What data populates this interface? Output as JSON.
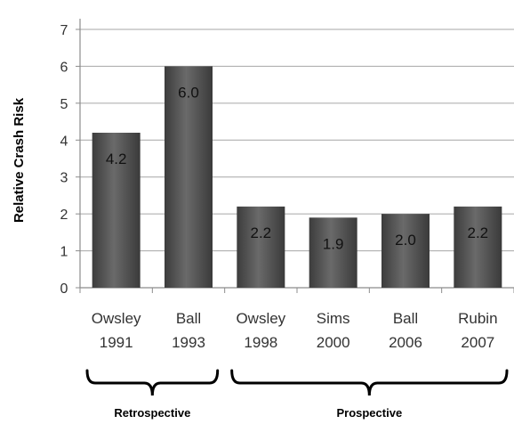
{
  "chart_data": {
    "type": "bar",
    "categories": [
      [
        "Owsley",
        "1991"
      ],
      [
        "Ball",
        "1993"
      ],
      [
        "Owsley",
        "1998"
      ],
      [
        "Sims",
        "2000"
      ],
      [
        "Ball",
        "2006"
      ],
      [
        "Rubin",
        "2007"
      ]
    ],
    "values": [
      4.2,
      6.0,
      2.2,
      1.9,
      2.0,
      2.2
    ],
    "value_labels": [
      "4.2",
      "6.0",
      "2.2",
      "1.9",
      "2.0",
      "2.2"
    ],
    "title": "",
    "xlabel": "",
    "ylabel": "Relative Crash Risk",
    "ylim": [
      0,
      7
    ],
    "yticks": [
      "0",
      "1",
      "2",
      "3",
      "4",
      "5",
      "6",
      "7"
    ],
    "grid": true,
    "groups": [
      {
        "label": "Retrospective",
        "start": 0,
        "end": 1
      },
      {
        "label": "Prospective",
        "start": 2,
        "end": 5
      }
    ],
    "colors": {
      "bar": "#505050",
      "bar_light": "#6a6a6a",
      "grid": "#a6a6a6",
      "axis": "#8c8c8c",
      "bracket": "#000000"
    }
  }
}
